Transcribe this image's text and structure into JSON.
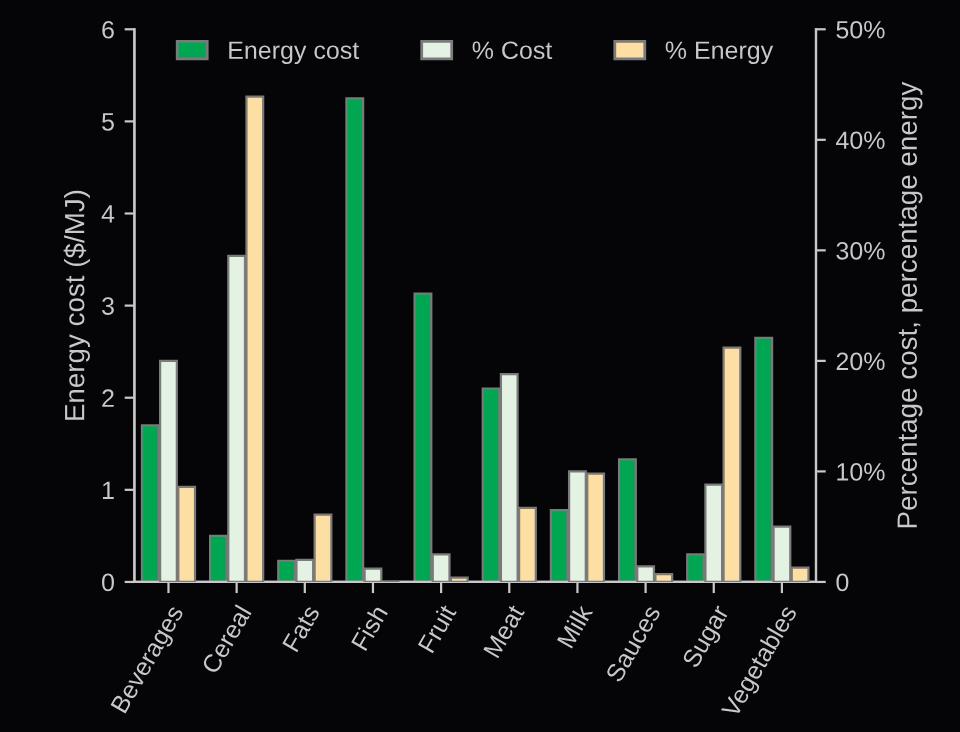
{
  "chart_data": {
    "type": "bar",
    "categories": [
      "Beverages",
      "Cereal",
      "Fats",
      "Fish",
      "Fruit",
      "Meat",
      "Milk",
      "Sauces",
      "Sugar",
      "Vegetables"
    ],
    "series": [
      {
        "name": "Energy cost",
        "color": "#00a651",
        "values": [
          1.7,
          0.5,
          0.23,
          5.25,
          3.13,
          2.1,
          0.78,
          1.33,
          0.3,
          2.65
        ]
      },
      {
        "name": "% Cost",
        "color": "#e4f2e4",
        "axis": "y2",
        "values": [
          20,
          29.5,
          2,
          1.2,
          2.5,
          18.8,
          10,
          1.4,
          8.8,
          5
        ]
      },
      {
        "name": "% Energy",
        "color": "#fddfa4",
        "axis": "y2",
        "values": [
          8.6,
          43.9,
          6.1,
          null,
          0.4,
          6.7,
          9.8,
          0.7,
          21.2,
          1.3
        ]
      }
    ],
    "ylabel": "Energy cost ($/MJ)",
    "y2label": "Percentage cost, percentage energy",
    "ylim": [
      0,
      6
    ],
    "yticks": [
      0,
      1,
      2,
      3,
      4,
      5,
      6
    ],
    "y2lim": [
      0,
      50
    ],
    "y2ticks": [
      0,
      {
        "value": 10,
        "label": "10%"
      },
      {
        "value": 20,
        "label": "20%"
      },
      {
        "value": 30,
        "label": "30%"
      },
      {
        "value": 40,
        "label": "40%"
      },
      {
        "value": 50,
        "label": "50%"
      }
    ],
    "legend": "top",
    "grid": false
  }
}
